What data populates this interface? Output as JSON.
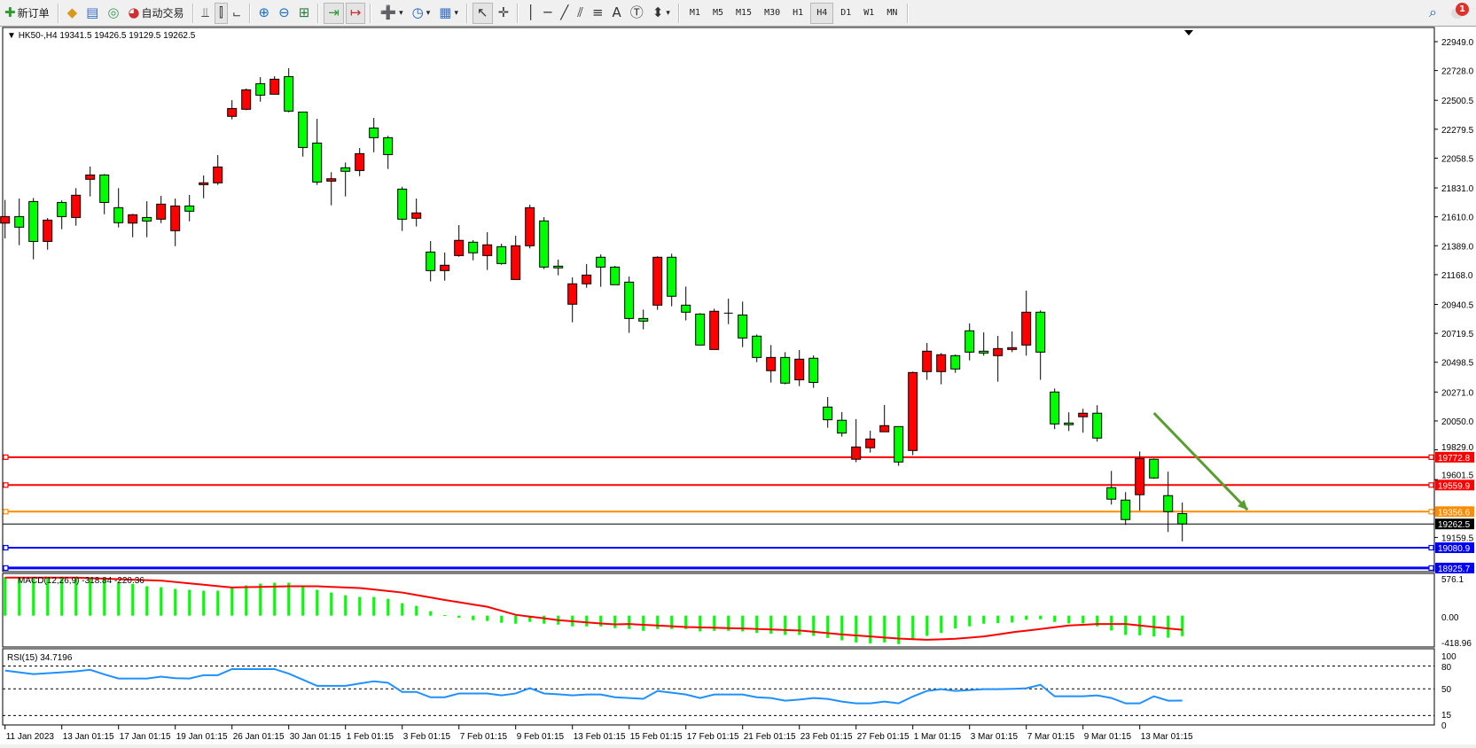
{
  "toolbar": {
    "items": [
      {
        "icon": "new-order-icon",
        "label": "新订单"
      },
      {
        "sep": true
      },
      {
        "icon": "market-watch-icon"
      },
      {
        "icon": "data-window-icon"
      },
      {
        "icon": "navigator-icon"
      },
      {
        "icon": "autotrading-icon",
        "label": "自动交易"
      },
      {
        "sep": true
      },
      {
        "icon": "bar-chart-icon"
      },
      {
        "icon": "candlestick-chart-icon",
        "active": true
      },
      {
        "icon": "line-chart-icon"
      },
      {
        "sep": true
      },
      {
        "icon": "zoom-in-icon"
      },
      {
        "icon": "zoom-out-icon"
      },
      {
        "icon": "tile-windows-icon"
      },
      {
        "sep": true
      },
      {
        "icon": "chart-shift-icon",
        "active": true
      },
      {
        "icon": "auto-scroll-icon",
        "active": true
      },
      {
        "sep": true
      },
      {
        "icon": "indicators-icon",
        "dropdown": true
      },
      {
        "icon": "periods-clock-icon",
        "dropdown": true
      },
      {
        "icon": "templates-icon",
        "dropdown": true
      },
      {
        "sep": true
      },
      {
        "icon": "cursor-icon",
        "active": true
      },
      {
        "icon": "crosshair-icon"
      },
      {
        "sep": true
      },
      {
        "icon": "vertical-line-icon"
      },
      {
        "icon": "horizontal-line-icon"
      },
      {
        "icon": "trendline-icon"
      },
      {
        "icon": "equidistant-channel-icon"
      },
      {
        "icon": "fibonacci-icon"
      },
      {
        "icon": "text-icon"
      },
      {
        "icon": "text-label-icon"
      },
      {
        "icon": "arrows-icon",
        "dropdown": true
      },
      {
        "sep": true
      }
    ],
    "timeframes": [
      "M1",
      "M5",
      "M15",
      "M30",
      "H1",
      "H4",
      "D1",
      "W1",
      "MN"
    ],
    "active_timeframe": "H4",
    "notification_count": "1"
  },
  "chart": {
    "header": "HK50-,H4  19341.5 19426.5 19129.5 19262.5",
    "colors": {
      "bull": "#ff0000",
      "bear": "#00ff00",
      "outline": "#000000",
      "macd_hist": "#00ff00",
      "macd_signal": "#ff0000",
      "rsi": "#1e90ff",
      "arrow": "#5a9e32"
    }
  },
  "chart_data": {
    "type": "candlestick",
    "symbol": "HK50-",
    "timeframe": "H4",
    "ohlc_fields": [
      "open",
      "high",
      "low",
      "close"
    ],
    "candles": [
      [
        21562,
        21739,
        21445,
        21612
      ],
      [
        21612,
        21750,
        21393,
        21531
      ],
      [
        21727,
        21754,
        21285,
        21422
      ],
      [
        21422,
        21601,
        21359,
        21585
      ],
      [
        21720,
        21736,
        21515,
        21612
      ],
      [
        21605,
        21829,
        21542,
        21775
      ],
      [
        21897,
        21994,
        21766,
        21930
      ],
      [
        21930,
        21937,
        21630,
        21720
      ],
      [
        21680,
        21829,
        21529,
        21565
      ],
      [
        21562,
        21632,
        21454,
        21626
      ],
      [
        21605,
        21729,
        21454,
        21578
      ],
      [
        21592,
        21770,
        21562,
        21707
      ],
      [
        21504,
        21750,
        21386,
        21693
      ],
      [
        21693,
        21777,
        21576,
        21653
      ],
      [
        21856,
        21926,
        21752,
        21870
      ],
      [
        21870,
        22082,
        21854,
        21991
      ],
      [
        22378,
        22502,
        22355,
        22438
      ],
      [
        22432,
        22590,
        22425,
        22581
      ],
      [
        22628,
        22678,
        22490,
        22540
      ],
      [
        22547,
        22685,
        22547,
        22662
      ],
      [
        22682,
        22746,
        22409,
        22418
      ],
      [
        22411,
        22411,
        22070,
        22140
      ],
      [
        22174,
        22359,
        21854,
        21876
      ],
      [
        21883,
        21951,
        21698,
        21901
      ],
      [
        21985,
        22025,
        21766,
        21958
      ],
      [
        21964,
        22136,
        21921,
        22093
      ],
      [
        22289,
        22366,
        22104,
        22215
      ],
      [
        22215,
        22229,
        21976,
        22086
      ],
      [
        21822,
        21840,
        21502,
        21592
      ],
      [
        21599,
        21750,
        21536,
        21640
      ],
      [
        21341,
        21425,
        21116,
        21199
      ],
      [
        21199,
        21337,
        21122,
        21240
      ],
      [
        21314,
        21547,
        21305,
        21430
      ],
      [
        21416,
        21432,
        21278,
        21335
      ],
      [
        21314,
        21493,
        21204,
        21396
      ],
      [
        21382,
        21405,
        21244,
        21253
      ],
      [
        21131,
        21466,
        21131,
        21389
      ],
      [
        21389,
        21703,
        21369,
        21680
      ],
      [
        21579,
        21608,
        21210,
        21226
      ],
      [
        21233,
        21283,
        21163,
        21220
      ],
      [
        20942,
        21147,
        20804,
        21098
      ],
      [
        21098,
        21249,
        21068,
        21165
      ],
      [
        21301,
        21323,
        21075,
        21226
      ],
      [
        21226,
        21235,
        21091,
        21091
      ],
      [
        21111,
        21154,
        20723,
        20833
      ],
      [
        20833,
        20901,
        20750,
        20813
      ],
      [
        20935,
        21308,
        20899,
        21301
      ],
      [
        21301,
        21328,
        20926,
        21003
      ],
      [
        20935,
        21077,
        20818,
        20881
      ],
      [
        20867,
        20874,
        20630,
        20630
      ],
      [
        20596,
        20908,
        20596,
        20888
      ],
      [
        20874,
        20985,
        20790,
        20874
      ],
      [
        20860,
        20962,
        20614,
        20684
      ],
      [
        20698,
        20711,
        20499,
        20535
      ],
      [
        20434,
        20630,
        20343,
        20535
      ],
      [
        20535,
        20576,
        20330,
        20339
      ],
      [
        20364,
        20592,
        20316,
        20522
      ],
      [
        20529,
        20551,
        20303,
        20344
      ],
      [
        20156,
        20233,
        19998,
        20059
      ],
      [
        20055,
        20118,
        19930,
        19957
      ],
      [
        19757,
        20064,
        19734,
        19851
      ],
      [
        19845,
        19976,
        19808,
        19912
      ],
      [
        19967,
        20172,
        19967,
        20014
      ],
      [
        20007,
        20007,
        19707,
        19736
      ],
      [
        19824,
        20427,
        19788,
        20420
      ],
      [
        20427,
        20646,
        20364,
        20583
      ],
      [
        20427,
        20569,
        20330,
        20556
      ],
      [
        20549,
        20558,
        20418,
        20447
      ],
      [
        20739,
        20795,
        20513,
        20576
      ],
      [
        20583,
        20727,
        20549,
        20569
      ],
      [
        20549,
        20700,
        20350,
        20603
      ],
      [
        20596,
        20734,
        20576,
        20610
      ],
      [
        20630,
        21046,
        20549,
        20881
      ],
      [
        20881,
        20895,
        20364,
        20576
      ],
      [
        20271,
        20298,
        19987,
        20027
      ],
      [
        20034,
        20116,
        19973,
        20021
      ],
      [
        20082,
        20143,
        19960,
        20109
      ],
      [
        20109,
        20170,
        19892,
        19919
      ],
      [
        19540,
        19668,
        19411,
        19452
      ],
      [
        19445,
        19506,
        19255,
        19296
      ],
      [
        19486,
        19817,
        19364,
        19763
      ],
      [
        19757,
        19763,
        19607,
        19614
      ],
      [
        19479,
        19662,
        19201,
        19357
      ],
      [
        19341.5,
        19426.5,
        19129.5,
        19262.5
      ]
    ],
    "price_axis_ticks": [
      "22949.0",
      "22728.0",
      "22500.5",
      "22279.5",
      "22058.5",
      "21831.0",
      "21610.0",
      "21389.0",
      "21168.0",
      "20940.5",
      "20719.5",
      "20498.5",
      "20271.0",
      "20050.0",
      "19829.0",
      "19601.5",
      "19159.5"
    ],
    "ylim": [
      18895,
      23050
    ],
    "levels": [
      {
        "price": "19772.8",
        "color": "#ff0000"
      },
      {
        "price": "19559.9",
        "color": "#ff0000"
      },
      {
        "price": "19356.6",
        "color": "#ff8c00"
      },
      {
        "price": "19262.5",
        "color": "#000000",
        "bid": true
      },
      {
        "price": "19080.9",
        "color": "#0000ff"
      },
      {
        "price": "18925.7",
        "color": "#0000ff"
      }
    ],
    "annotation_arrow": {
      "from_price": 20110,
      "from_candle": 81,
      "to_price": 19370,
      "to_candle": 87.6
    },
    "time_labels": [
      "11 Jan 2023",
      "13 Jan 01:15",
      "17 Jan 01:15",
      "19 Jan 01:15",
      "26 Jan 01:15",
      "30 Jan 01:15",
      "1 Feb 01:15",
      "3 Feb 01:15",
      "7 Feb 01:15",
      "9 Feb 01:15",
      "13 Feb 01:15",
      "15 Feb 01:15",
      "17 Feb 01:15",
      "21 Feb 01:15",
      "23 Feb 01:15",
      "27 Feb 01:15",
      "1 Mar 01:15",
      "3 Mar 01:15",
      "7 Mar 01:15",
      "9 Mar 01:15",
      "13 Mar 01:15"
    ],
    "time_label_every": 4,
    "macd": {
      "label": "MACD(12,26,9) -318.84 -220.36",
      "axis_ticks": [
        "576.1",
        "0.00",
        "-418.96"
      ],
      "ylim": [
        -418.96,
        576.1
      ],
      "histogram": [
        600,
        579,
        579,
        579,
        579,
        579,
        579,
        556,
        523,
        495,
        458,
        444,
        417,
        403,
        389,
        389,
        440,
        472,
        500,
        514,
        514,
        472,
        403,
        361,
        319,
        292,
        292,
        264,
        194,
        153,
        69,
        9,
        -32,
        -69,
        -83,
        -111,
        -125,
        -97,
        -125,
        -139,
        -167,
        -167,
        -167,
        -194,
        -208,
        -236,
        -208,
        -208,
        -208,
        -245,
        -236,
        -236,
        -245,
        -269,
        -282,
        -301,
        -301,
        -315,
        -347,
        -384,
        -417,
        -431,
        -417,
        -444,
        -366,
        -315,
        -269,
        -199,
        -167,
        -125,
        -116,
        -106,
        -65,
        -56,
        -97,
        -120,
        -120,
        -167,
        -231,
        -301,
        -306,
        -324,
        -343,
        -318.84
      ],
      "signal": [
        593,
        593,
        593,
        593,
        593,
        593,
        585,
        577,
        569,
        561,
        553,
        546,
        525,
        504,
        482,
        461,
        440,
        445,
        449,
        454,
        458,
        458,
        458,
        449,
        440,
        431,
        408,
        384,
        361,
        322,
        284,
        245,
        210,
        174,
        139,
        76,
        14,
        -14,
        -41,
        -69,
        -87,
        -104,
        -122,
        -135,
        -130,
        -142,
        -153,
        -165,
        -176,
        -182,
        -188,
        -194,
        -199,
        -207,
        -215,
        -223,
        -231,
        -251,
        -272,
        -292,
        -308,
        -324,
        -340,
        -356,
        -366,
        -375,
        -368,
        -360,
        -342,
        -324,
        -292,
        -259,
        -234,
        -208,
        -180,
        -153,
        -142,
        -130,
        -130,
        -130,
        -153,
        -176,
        -199,
        -220.36
      ]
    },
    "rsi": {
      "label": "RSI(15) 34.7196",
      "axis_ticks": [
        "100",
        "80",
        "50",
        "15",
        "0"
      ],
      "levels": [
        80,
        50,
        15
      ],
      "ylim": [
        0,
        100
      ],
      "values": [
        74,
        71.7,
        69.4,
        70.5,
        71.7,
        73,
        75,
        69,
        63.6,
        63.6,
        63.6,
        66,
        64,
        63.6,
        68,
        68,
        76,
        76,
        76,
        76,
        70,
        62,
        54,
        54,
        54,
        57,
        60,
        58,
        46,
        46,
        39,
        39,
        44,
        44,
        44,
        41.5,
        44,
        51,
        44,
        43,
        41.5,
        42.6,
        42.6,
        39,
        38,
        37,
        47.3,
        45,
        42.6,
        38,
        42.6,
        42.6,
        42.6,
        39,
        38,
        34.5,
        36,
        38,
        36.8,
        33.3,
        31,
        31,
        33.3,
        31,
        40,
        47.3,
        49.6,
        47.3,
        48.5,
        49.6,
        49.6,
        50,
        50.8,
        55.4,
        40.3,
        40.3,
        40.3,
        41.5,
        38,
        31,
        31,
        40.3,
        34.5,
        34.7196
      ]
    }
  }
}
